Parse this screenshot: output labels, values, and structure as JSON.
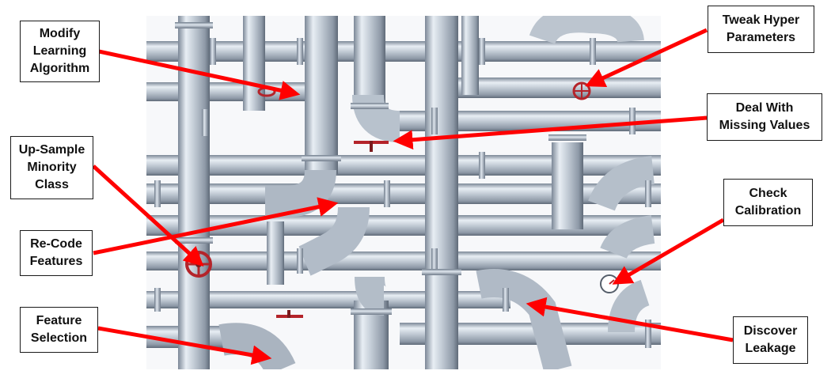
{
  "labels": {
    "modify_learning": "Modify\nLearning\nAlgorithm",
    "upsample": "Up-Sample\nMinority\nClass",
    "recode": "Re-Code\nFeatures",
    "feature_selection": "Feature\nSelection",
    "tweak_hyper": "Tweak Hyper\nParameters",
    "missing_values": "Deal With\nMissing Values",
    "check_calibration": "Check\nCalibration",
    "discover_leakage": "Discover\nLeakage"
  },
  "colors": {
    "arrow": "#ff0000",
    "pipe_light": "#dfe6ee",
    "pipe_mid": "#a9b4c1",
    "pipe_dark": "#6b7786",
    "valve": "#b4242a"
  },
  "icons": [
    "valve-wheel-icon",
    "pressure-gauge-icon",
    "pipe-elbow-icon"
  ]
}
